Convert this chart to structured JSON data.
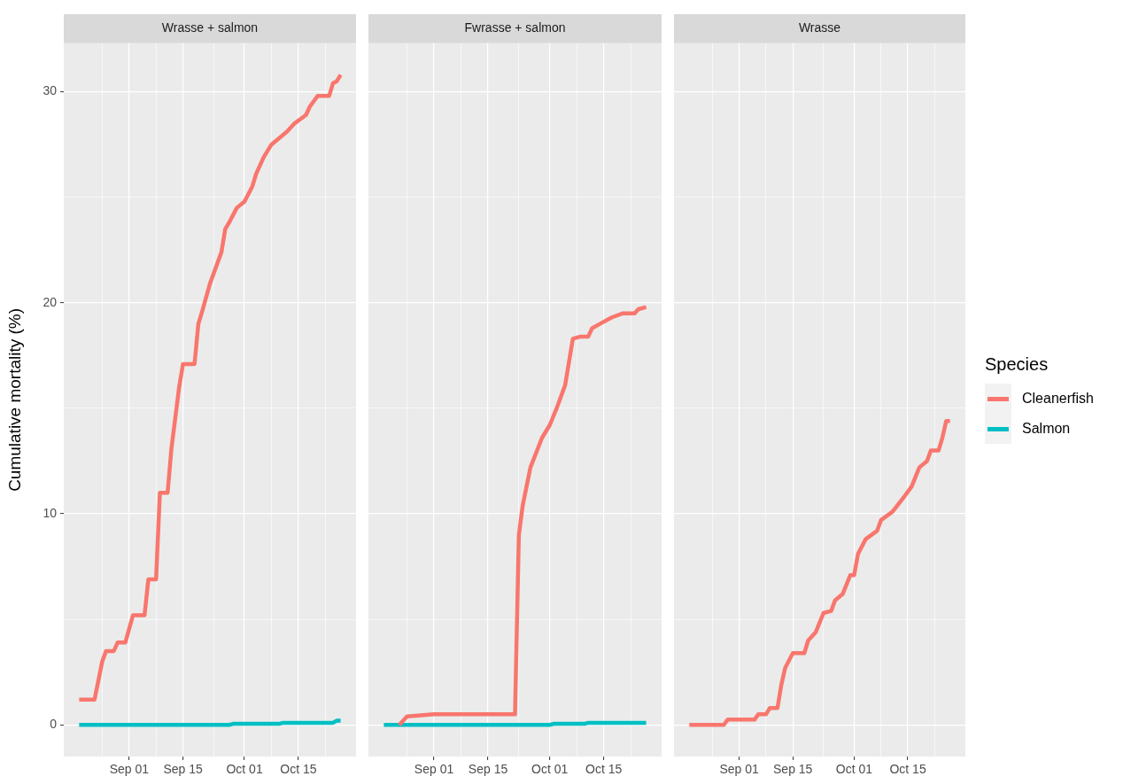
{
  "chart_data": [
    {
      "type": "line",
      "title": "Wrasse + salmon",
      "ylabel": "Cumulative mortality (%)",
      "legend": "right",
      "legend_title": "Species",
      "xlim": [
        "--08-15",
        "--10-30"
      ],
      "ylim": [
        -1.5,
        32.3
      ],
      "grid": true,
      "marker": "none",
      "line_style": "solid",
      "xticks": [
        {
          "value": "--08-25",
          "label": null
        },
        {
          "value": "--09-01",
          "label": "Sep 01"
        },
        {
          "value": "--09-08",
          "label": null
        },
        {
          "value": "--09-15",
          "label": "Sep 15"
        },
        {
          "value": "--09-23",
          "label": null
        },
        {
          "value": "--10-01",
          "label": "Oct 01"
        },
        {
          "value": "--10-08",
          "label": null
        },
        {
          "value": "--10-15",
          "label": "Oct 15"
        },
        {
          "value": "--10-22",
          "label": null
        }
      ],
      "yticks": [
        0,
        {
          "value": 5,
          "label": null
        },
        10,
        {
          "value": 15,
          "label": null
        },
        20,
        {
          "value": 25,
          "label": null
        },
        30
      ],
      "series": [
        {
          "name": "Cleanerfish",
          "color": "#f8766d",
          "x": [
            "--08-19",
            "--08-23",
            "--08-25",
            "--08-26",
            "--08-28",
            "--08-29",
            "--08-31",
            "--09-02",
            "--09-05",
            "--09-06",
            "--09-08",
            "--09-09",
            "--09-11",
            "--09-12",
            "--09-14",
            "--09-15",
            "--09-18",
            "--09-19",
            "--09-20",
            "--09-22",
            "--09-23",
            "--09-25",
            "--09-26",
            "--09-27",
            "--09-29",
            "--10-01",
            "--10-03",
            "--10-04",
            "--10-06",
            "--10-08",
            "--10-10",
            "--10-12",
            "--10-14",
            "--10-17",
            "--10-18",
            "--10-20",
            "--10-23",
            "--10-24",
            "--10-25",
            "--10-26"
          ],
          "values": [
            1.2,
            1.2,
            3.0,
            3.5,
            3.5,
            3.9,
            3.9,
            5.2,
            5.2,
            6.9,
            6.9,
            11.0,
            11.0,
            13.1,
            16.0,
            17.1,
            17.1,
            19.0,
            19.6,
            20.9,
            21.4,
            22.4,
            23.5,
            23.8,
            24.5,
            24.8,
            25.5,
            26.1,
            26.9,
            27.5,
            27.8,
            28.1,
            28.5,
            28.9,
            29.3,
            29.8,
            29.8,
            30.4,
            30.5,
            30.8
          ]
        },
        {
          "name": "Salmon",
          "color": "#00bfc4",
          "x": [
            "--08-19",
            "--09-27",
            "--09-28",
            "--10-10",
            "--10-11",
            "--10-24",
            "--10-25",
            "--10-26"
          ],
          "values": [
            0,
            0,
            0.05,
            0.05,
            0.1,
            0.1,
            0.2,
            0.2
          ]
        }
      ]
    },
    {
      "type": "line",
      "title": "Fwrasse + salmon",
      "xlim": [
        "--08-15",
        "--10-30"
      ],
      "ylim": [
        -1.5,
        32.3
      ],
      "grid": true,
      "marker": "none",
      "line_style": "solid",
      "tick_labels": "x",
      "xticks": [
        {
          "value": "--08-25",
          "label": null
        },
        {
          "value": "--09-01",
          "label": "Sep 01"
        },
        {
          "value": "--09-08",
          "label": null
        },
        {
          "value": "--09-15",
          "label": "Sep 15"
        },
        {
          "value": "--09-23",
          "label": null
        },
        {
          "value": "--10-01",
          "label": "Oct 01"
        },
        {
          "value": "--10-08",
          "label": null
        },
        {
          "value": "--10-15",
          "label": "Oct 15"
        },
        {
          "value": "--10-22",
          "label": null
        }
      ],
      "yticks": [
        0,
        {
          "value": 5,
          "label": null
        },
        10,
        {
          "value": 15,
          "label": null
        },
        20,
        {
          "value": 25,
          "label": null
        },
        30
      ],
      "series": [
        {
          "name": "Cleanerfish",
          "color": "#f8766d",
          "x": [
            "--08-23",
            "--08-25",
            "--09-01",
            "--09-22",
            "--09-23",
            "--09-24",
            "--09-26",
            "--09-29",
            "--10-01",
            "--10-03",
            "--10-05",
            "--10-07",
            "--10-09",
            "--10-11",
            "--10-12",
            "--10-14",
            "--10-17",
            "--10-20",
            "--10-23",
            "--10-24",
            "--10-26"
          ],
          "values": [
            0,
            0.4,
            0.5,
            0.5,
            9.0,
            10.4,
            12.2,
            13.6,
            14.2,
            15.1,
            16.1,
            18.3,
            18.4,
            18.4,
            18.8,
            19.0,
            19.3,
            19.5,
            19.5,
            19.7,
            19.8
          ]
        },
        {
          "name": "Salmon",
          "color": "#00bfc4",
          "x": [
            "--08-19",
            "--10-01",
            "--10-02",
            "--10-10",
            "--10-11",
            "--10-26"
          ],
          "values": [
            0,
            0,
            0.05,
            0.05,
            0.1,
            0.1
          ]
        }
      ]
    },
    {
      "type": "line",
      "title": "Wrasse",
      "xlim": [
        "--08-15",
        "--10-30"
      ],
      "ylim": [
        -1.5,
        32.3
      ],
      "grid": true,
      "marker": "none",
      "line_style": "solid",
      "tick_labels": "x",
      "xticks": [
        {
          "value": "--08-25",
          "label": null
        },
        {
          "value": "--09-01",
          "label": "Sep 01"
        },
        {
          "value": "--09-08",
          "label": null
        },
        {
          "value": "--09-15",
          "label": "Sep 15"
        },
        {
          "value": "--09-23",
          "label": null
        },
        {
          "value": "--10-01",
          "label": "Oct 01"
        },
        {
          "value": "--10-08",
          "label": null
        },
        {
          "value": "--10-15",
          "label": "Oct 15"
        },
        {
          "value": "--10-22",
          "label": null
        }
      ],
      "yticks": [
        0,
        {
          "value": 5,
          "label": null
        },
        10,
        {
          "value": 15,
          "label": null
        },
        20,
        {
          "value": 25,
          "label": null
        },
        30
      ],
      "series": [
        {
          "name": "Cleanerfish",
          "color": "#f8766d",
          "x": [
            "--08-19",
            "--08-28",
            "--08-29",
            "--09-05",
            "--09-06",
            "--09-08",
            "--09-09",
            "--09-11",
            "--09-12",
            "--09-13",
            "--09-15",
            "--09-18",
            "--09-19",
            "--09-21",
            "--09-23",
            "--09-25",
            "--09-26",
            "--09-28",
            "--09-30",
            "--10-01",
            "--10-02",
            "--10-04",
            "--10-07",
            "--10-08",
            "--10-11",
            "--10-14",
            "--10-16",
            "--10-18",
            "--10-20",
            "--10-21",
            "--10-23",
            "--10-24",
            "--10-25",
            "--10-26"
          ],
          "values": [
            0,
            0,
            0.25,
            0.25,
            0.5,
            0.5,
            0.8,
            0.8,
            1.9,
            2.7,
            3.4,
            3.4,
            4.0,
            4.4,
            5.3,
            5.4,
            5.9,
            6.2,
            7.1,
            7.1,
            8.1,
            8.8,
            9.2,
            9.7,
            10.1,
            10.8,
            11.3,
            12.2,
            12.5,
            13.0,
            13.0,
            13.6,
            14.4,
            14.4
          ]
        }
      ]
    }
  ]
}
